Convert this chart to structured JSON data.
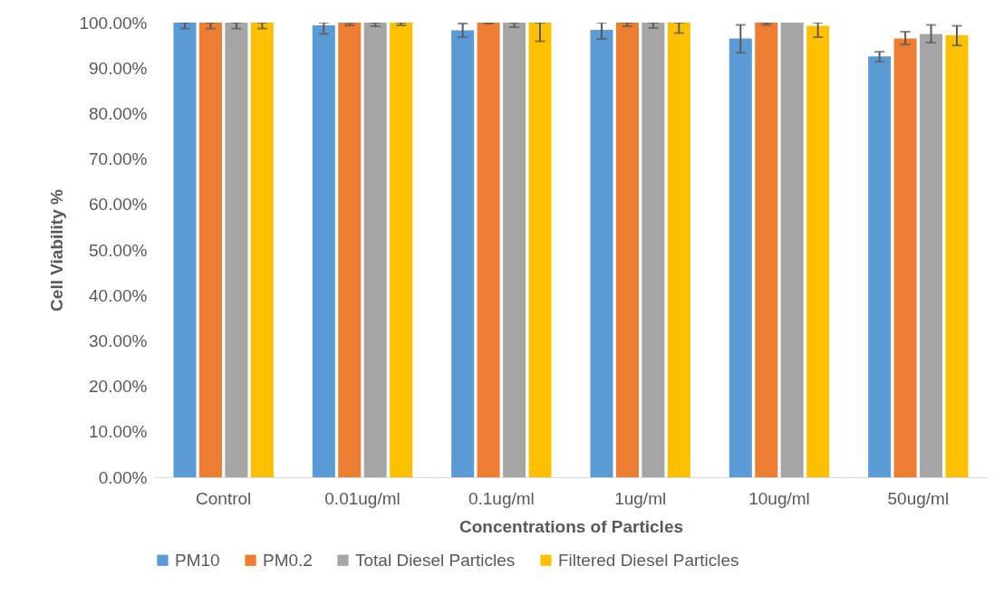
{
  "chart_data": {
    "type": "bar",
    "xlabel": "Concentrations of Particles",
    "ylabel": "Cell Viability %",
    "categories": [
      "Control",
      "0.01ug/ml",
      "0.1ug/ml",
      "1ug/ml",
      "10ug/ml",
      "50ug/ml"
    ],
    "series": [
      {
        "name": "PM10",
        "color": "#5b9bd5",
        "values": [
          100,
          99.4,
          98.3,
          98.4,
          96.5,
          92.6
        ],
        "errors": [
          [
            98.7,
            100
          ],
          [
            97.5,
            100
          ],
          [
            96.8,
            99.8
          ],
          [
            96.4,
            100
          ],
          [
            93.4,
            99.5
          ],
          [
            91.4,
            93.6
          ]
        ]
      },
      {
        "name": "PM0.2",
        "color": "#ed7d31",
        "values": [
          100,
          100,
          100,
          100,
          100,
          96.5
        ],
        "errors": [
          [
            98.7,
            100
          ],
          [
            99.4,
            100
          ],
          [
            99.8,
            100
          ],
          [
            99.2,
            100
          ],
          [
            99.5,
            100
          ],
          [
            95.2,
            98.0
          ]
        ]
      },
      {
        "name": "Total Diesel Particles",
        "color": "#a5a5a5",
        "values": [
          100,
          100,
          100,
          100,
          100,
          97.5
        ],
        "errors": [
          [
            98.7,
            100
          ],
          [
            99.2,
            100
          ],
          [
            99.0,
            100
          ],
          [
            98.8,
            100
          ],
          null,
          [
            95.6,
            99.5
          ]
        ]
      },
      {
        "name": "Filtered Diesel Particles",
        "color": "#ffc000",
        "values": [
          100,
          100,
          100,
          100,
          99.3,
          97.2
        ],
        "errors": [
          [
            98.7,
            100
          ],
          [
            99.4,
            100
          ],
          [
            95.9,
            100
          ],
          [
            97.7,
            100
          ],
          [
            96.8,
            100
          ],
          [
            95.0,
            99.3
          ]
        ]
      }
    ],
    "ylim": [
      0,
      100
    ],
    "yticks": [
      {
        "value": 0,
        "label": "0.00%"
      },
      {
        "value": 10,
        "label": "10.00%"
      },
      {
        "value": 20,
        "label": "20.00%"
      },
      {
        "value": 30,
        "label": "30.00%"
      },
      {
        "value": 40,
        "label": "40.00%"
      },
      {
        "value": 50,
        "label": "50.00%"
      },
      {
        "value": 60,
        "label": "60.00%"
      },
      {
        "value": 70,
        "label": "70.00%"
      },
      {
        "value": 80,
        "label": "80.00%"
      },
      {
        "value": 90,
        "label": "90.00%"
      },
      {
        "value": 100,
        "label": "100.00%"
      }
    ],
    "grid": false,
    "legend": "bottom"
  }
}
